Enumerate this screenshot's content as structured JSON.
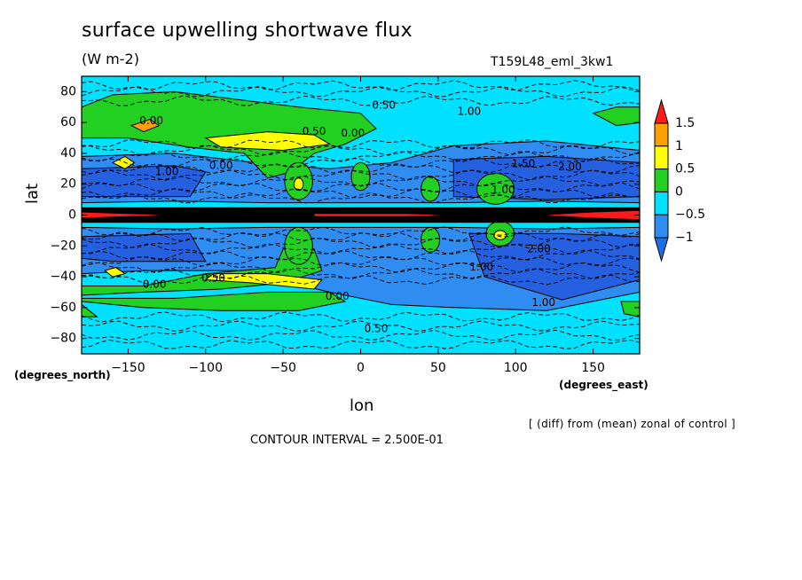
{
  "header": {
    "title": "surface upwelling shortwave flux",
    "units": "(W m-2)",
    "run_id": "T159L48_eml_3kw1"
  },
  "footer": {
    "note": "[ (diff) from (mean) zonal of control ]",
    "contour_interval": "CONTOUR INTERVAL = 2.500E-01"
  },
  "colors": {
    "below_-1": "#1e6fe6",
    "-1_to_-0.5": "#2f8cf0",
    "-0.5_to_0": "#00e0ff",
    "0_to_0.5": "#22d022",
    "0.5_to_1": "#ffff00",
    "1_to_1.5": "#ff9f00",
    "above_1.5": "#ff1a1a",
    "deep_blue_region": "#2460e0"
  },
  "chart_data": {
    "type": "heatmap",
    "title": "surface upwelling shortwave flux",
    "units": "(W m-2)",
    "xlabel": "lon",
    "ylabel": "lat",
    "x_unit": "(degrees_east)",
    "y_unit": "(degrees_north)",
    "xlim": [
      -180,
      180
    ],
    "ylim": [
      -90,
      90
    ],
    "x_ticks": [
      -150,
      -100,
      -50,
      0,
      50,
      100,
      150
    ],
    "x_tick_labels": [
      "−150",
      "−100",
      "−50",
      "0",
      "50",
      "100",
      "150"
    ],
    "y_ticks": [
      80,
      60,
      40,
      20,
      0,
      -20,
      -40,
      -60,
      -80
    ],
    "y_tick_labels": [
      "80",
      "60",
      "40",
      "20",
      "0",
      "−20",
      "−40",
      "−60",
      "−80"
    ],
    "colorbar": {
      "levels": [
        -1,
        -0.5,
        0,
        0.5,
        1,
        1.5
      ],
      "tick_labels": [
        "−1",
        "−0.5",
        "0",
        "0.5",
        "1",
        "1.5"
      ],
      "colors": [
        "#2f8cf0",
        "#00e0ff",
        "#22d022",
        "#ffff00",
        "#ff9f00"
      ],
      "under_color": "#1e6fe6",
      "over_color": "#ff1a1a"
    },
    "contour_labels": [
      {
        "text": "0.50",
        "lon": 15,
        "lat": 71
      },
      {
        "text": "1.00",
        "lon": 70,
        "lat": 67
      },
      {
        "text": "0.00",
        "lon": -135,
        "lat": 61
      },
      {
        "text": "0.50",
        "lon": -30,
        "lat": 54
      },
      {
        "text": "0.00",
        "lon": -5,
        "lat": 53
      },
      {
        "text": "1.00",
        "lon": -125,
        "lat": 28
      },
      {
        "text": "0.00",
        "lon": -90,
        "lat": 32
      },
      {
        "text": "1.50",
        "lon": 105,
        "lat": 33
      },
      {
        "text": "2.00",
        "lon": 135,
        "lat": 31
      },
      {
        "text": "1.00",
        "lon": 92,
        "lat": 16
      },
      {
        "text": "2.00",
        "lon": 115,
        "lat": -22
      },
      {
        "text": "1.00",
        "lon": 78,
        "lat": -34
      },
      {
        "text": "0.00",
        "lon": -133,
        "lat": -45
      },
      {
        "text": "0.50",
        "lon": -95,
        "lat": -41
      },
      {
        "text": "0.00",
        "lon": -15,
        "lat": -53
      },
      {
        "text": "1.00",
        "lon": 118,
        "lat": -57
      },
      {
        "text": "0.50",
        "lon": 10,
        "lat": -74
      }
    ]
  }
}
